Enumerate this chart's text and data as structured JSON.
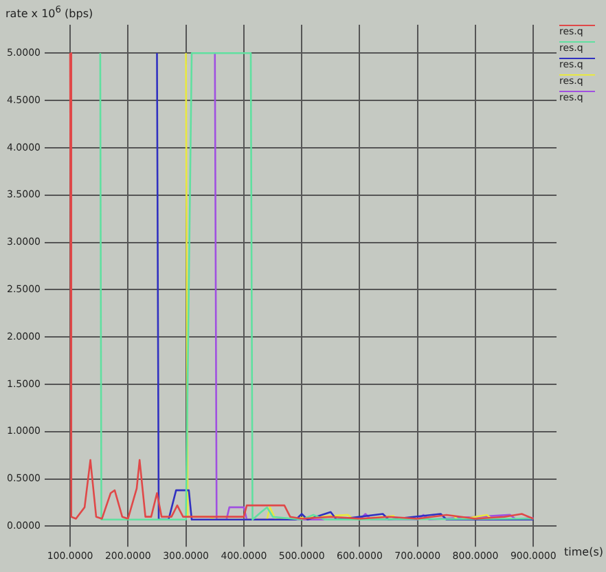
{
  "chart_data": {
    "type": "line",
    "ylabel": "rate x 10$^{6}$ (bps)",
    "xlabel": "time(s)",
    "legend": "top right",
    "grid": true,
    "marker": "none",
    "line_style": "solid",
    "xlim": [
      75,
      940
    ],
    "ylim": [
      -0.1,
      5.3
    ],
    "xticks": [
      {
        "value": 100,
        "label": "100.0000"
      },
      {
        "value": 200,
        "label": "200.0000"
      },
      {
        "value": 300,
        "label": "300.0000"
      },
      {
        "value": 400,
        "label": "400.0000"
      },
      {
        "value": 500,
        "label": "500.0000"
      },
      {
        "value": 600,
        "label": "600.0000"
      },
      {
        "value": 700,
        "label": "700.0000"
      },
      {
        "value": 800,
        "label": "800.0000"
      },
      {
        "value": 900,
        "label": "900.0000"
      }
    ],
    "yticks": [
      {
        "value": 0,
        "label": "0.0000"
      },
      {
        "value": 0.5,
        "label": "0.5000"
      },
      {
        "value": 1,
        "label": "1.0000"
      },
      {
        "value": 1.5,
        "label": "1.5000"
      },
      {
        "value": 2,
        "label": "2.0000"
      },
      {
        "value": 2.5,
        "label": "2.5000"
      },
      {
        "value": 3,
        "label": "3.0000"
      },
      {
        "value": 3.5,
        "label": "3.5000"
      },
      {
        "value": 4,
        "label": "4.0000"
      },
      {
        "value": 4.5,
        "label": "4.5000"
      },
      {
        "value": 5,
        "label": "5.0000"
      }
    ],
    "series": [
      {
        "name": "res.q",
        "color": "#e04848",
        "x": [
          100,
          102,
          110,
          125,
          135,
          145,
          155,
          170,
          177,
          190,
          200,
          215,
          220,
          230,
          240,
          250,
          258,
          275,
          285,
          295,
          320,
          400,
          405,
          470,
          480,
          500,
          550,
          600,
          650,
          700,
          750,
          800,
          850,
          880,
          900
        ],
        "values": [
          5.0,
          0.1,
          0.08,
          0.2,
          0.7,
          0.1,
          0.08,
          0.35,
          0.38,
          0.1,
          0.08,
          0.4,
          0.7,
          0.1,
          0.1,
          0.35,
          0.1,
          0.1,
          0.22,
          0.1,
          0.1,
          0.1,
          0.22,
          0.22,
          0.1,
          0.08,
          0.1,
          0.08,
          0.1,
          0.08,
          0.12,
          0.08,
          0.1,
          0.13,
          0.08
        ]
      },
      {
        "name": "res.q",
        "color": "#60e0a0",
        "x": [
          152,
          154,
          200,
          300,
          310,
          412,
          415,
          430,
          440,
          450,
          500,
          520,
          540,
          900
        ],
        "values": [
          5.0,
          0.07,
          0.07,
          0.07,
          5.0,
          5.0,
          0.07,
          0.15,
          0.2,
          0.1,
          0.07,
          0.12,
          0.07,
          0.08
        ]
      },
      {
        "name": "res.q",
        "color": "#3030c0",
        "x": [
          250,
          253,
          270,
          283,
          305,
          310,
          490,
          500,
          510,
          550,
          560,
          640,
          650,
          740,
          750,
          900
        ],
        "values": [
          5.0,
          0.07,
          0.07,
          0.38,
          0.38,
          0.07,
          0.07,
          0.13,
          0.07,
          0.15,
          0.07,
          0.13,
          0.07,
          0.13,
          0.07,
          0.07
        ]
      },
      {
        "name": "res.q",
        "color": "#e8e840",
        "x": [
          300,
          303,
          340,
          350,
          440,
          445,
          455,
          580,
          590,
          660,
          680,
          760,
          770,
          820,
          830
        ],
        "values": [
          5.0,
          0.1,
          0.1,
          0.07,
          0.07,
          0.2,
          0.07,
          0.12,
          0.07,
          0.11,
          null,
          0.12,
          0.07,
          0.12,
          0.07
        ]
      },
      {
        "name": "res.q",
        "color": "#a050e0",
        "x": [
          350,
          353,
          370,
          375,
          400,
          405,
          600,
          610,
          620,
          700,
          710,
          720,
          860,
          870,
          900
        ],
        "values": [
          5.0,
          0.07,
          0.07,
          0.2,
          0.2,
          0.07,
          0.07,
          0.13,
          0.07,
          0.07,
          0.12,
          0.07,
          0.12,
          0.07,
          0.09
        ]
      }
    ]
  }
}
